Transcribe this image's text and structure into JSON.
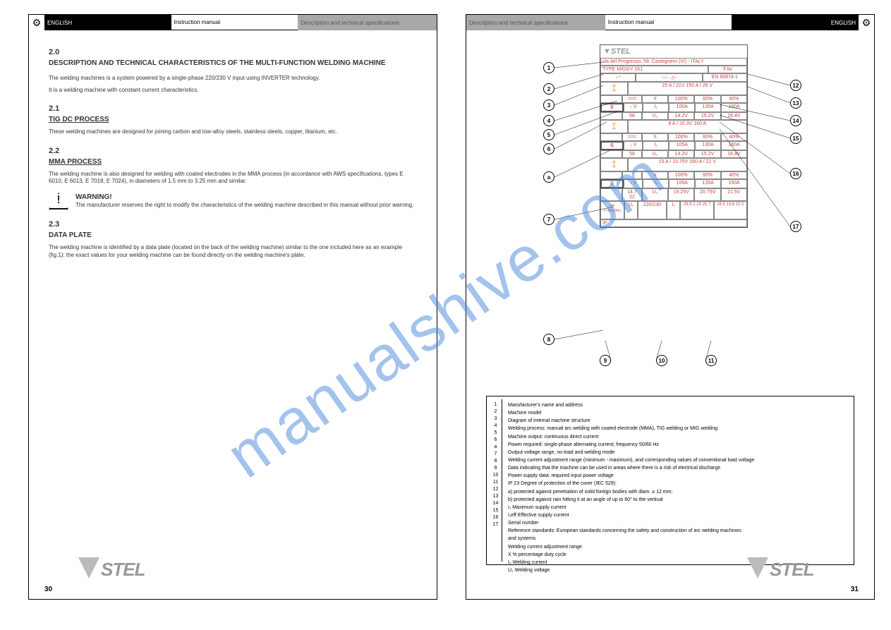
{
  "watermark": "manualshive.com",
  "left_page": {
    "header": {
      "seg1": "ENGLISH",
      "seg2": "Instruction manual",
      "seg3": "Description and technical specifications"
    },
    "gear_icon": "⚙",
    "intro_heading_num": "2.0",
    "intro_heading": "DESCRIPTION AND TECHNICAL CHARACTERISTICS OF THE MULTI-FUNCTION WELDING MACHINE",
    "body1": "The welding machines is a system powered by a single-phase 220/230 V input using INVERTER technology.",
    "body2": "It is a welding machine with constant current characteristics.",
    "sec21_num": "2.1",
    "sec21_title": "TIG DC PROCESS",
    "sec21_body": "These welding machines are designed for joining carbon and low-alloy steels, stainless steels, copper, titanium, etc.",
    "sec22_num": "2.2",
    "sec22_title": "MMA PROCESS",
    "sec22_body": "The welding machine is also designed for welding with coated electrodes in the MMA process (in accordance with AWS specifications, types E 6010, E 6013, E 7018, E 7024), in diameters of 1.5 mm to 3.25 mm and similar.",
    "warn_heading": "WARNING!",
    "warn_body": "The manufacturer reserves the right to modify the characteristics of the welding machine described in this manual without prior warning.",
    "sec23_num": "2.3",
    "sec23_title": "DATA PLATE",
    "sec23_body": "The welding machine is identified by a data plate (located on the back of the welding machine) similar to the one included here as an example (fig.1): the exact values for your welding machine can be found directly on the welding machine's plate.",
    "page_number": "30"
  },
  "right_page": {
    "header": {
      "seg1": "Description and technical specifications",
      "seg2": "Instruction manual",
      "seg3": "ENGLISH"
    },
    "gear_icon": "⚙",
    "plate": {
      "brand": "STEL",
      "address": "via del Progresso, 59. Castegnero (VI) - ITALY",
      "type_label": "TYPE",
      "type_value": "MIGGY 161",
      "fnr_label": "F.Nr",
      "standard": "EN 60974-1",
      "blocks": [
        {
          "range": "25 A / 21V        150 A / 26 V",
          "rows": [
            [
              "===",
              "X",
              "100%",
              "60%",
              "40%"
            ],
            [
              "↓ V",
              "I₂",
              "100A",
              "130A",
              "160A"
            ],
            [
              "58",
              "U₂",
              "14.2V",
              "15.2V",
              "16.4V"
            ]
          ],
          "sym": "S"
        },
        {
          "range": "8 A / 10.3V        160 A",
          "rows": [
            [
              "===",
              "X",
              "100%",
              "60%",
              "40%"
            ],
            [
              "↓ V",
              "I₂",
              "105A",
              "130A",
              "160A"
            ],
            [
              "58",
              "U₂",
              "14.2V",
              "15.2V",
              "16.4V"
            ]
          ],
          "sym": "S"
        },
        {
          "range": "15 A / 15.75V      160 A / 22 V",
          "rows": [
            [
              "",
              "X",
              "100%",
              "60%",
              "40%"
            ],
            [
              "↓ V",
              "I₂",
              "105A",
              "135A",
              "150A"
            ],
            [
              "14.7 22",
              "U₂",
              "19.25V",
              "20.75V",
              "21.5V"
            ]
          ],
          "sym": "S"
        }
      ],
      "bottom_row": [
        "U₁",
        "220/230",
        "I₁",
        "29.9  2.15  25.7",
        "18.5  13.6  10.2"
      ],
      "ip": "IP"
    },
    "callouts_left": [
      "1",
      "2",
      "3",
      "4",
      "5",
      "6",
      "a",
      "7",
      "8"
    ],
    "callouts_right": [
      "12",
      "13",
      "14",
      "15",
      "16",
      "17"
    ],
    "callouts_bottom": [
      "9",
      "10",
      "11"
    ],
    "legend_title": "Fig.1",
    "legend": [
      {
        "n": "1",
        "t": "Manufacturer's name and address"
      },
      {
        "n": "2",
        "t": "Machine model"
      },
      {
        "n": "3",
        "t": "Diagram of internal machine structure"
      },
      {
        "n": "4",
        "t": "Welding process: manual arc welding with coated electrode (MMA), TIG welding or MIG welding"
      },
      {
        "n": "5",
        "t": "Machine output: continuous direct current"
      },
      {
        "n": "6",
        "t": "Power required: single-phase alternating current; frequency 50/60 Hz"
      },
      {
        "n": "a",
        "t": "Output voltage range, no-load and welding mode"
      },
      {
        "n": "7",
        "t": "Welding current adjustment range (minimum - maximum), and corresponding values of conventional load voltage"
      },
      {
        "n": "8",
        "t": "Data indicating that the machine can be used in areas where there is a risk of electrical discharge"
      },
      {
        "n": "9",
        "t": "Power supply data: required input power voltage"
      },
      {
        "n": "10",
        "t": "IP 23 Degree of protection of the cover (IEC 529):"
      },
      {
        "n": "",
        "t": "a) protected against penetration of solid foreign bodies with diam. ≥ 12 mm;"
      },
      {
        "n": "",
        "t": "b) protected against rain hitting it at an angle of up to 60° to the vertical"
      },
      {
        "n": "11",
        "t": "I₁ Maximum supply current"
      },
      {
        "n": "",
        "t": "I₁eff Effective supply current"
      },
      {
        "n": "12",
        "t": "Serial number"
      },
      {
        "n": "13",
        "t": "Reference standards: European standards concerning the safety and construction of arc welding machines"
      },
      {
        "n": "",
        "t": "and systems"
      },
      {
        "n": "14",
        "t": "Welding current adjustment range"
      },
      {
        "n": "15",
        "t": "X % percentage duty cycle"
      },
      {
        "n": "16",
        "t": "I₂ Welding current"
      },
      {
        "n": "17",
        "t": "U₂ Welding voltage"
      }
    ],
    "page_number": "31"
  }
}
